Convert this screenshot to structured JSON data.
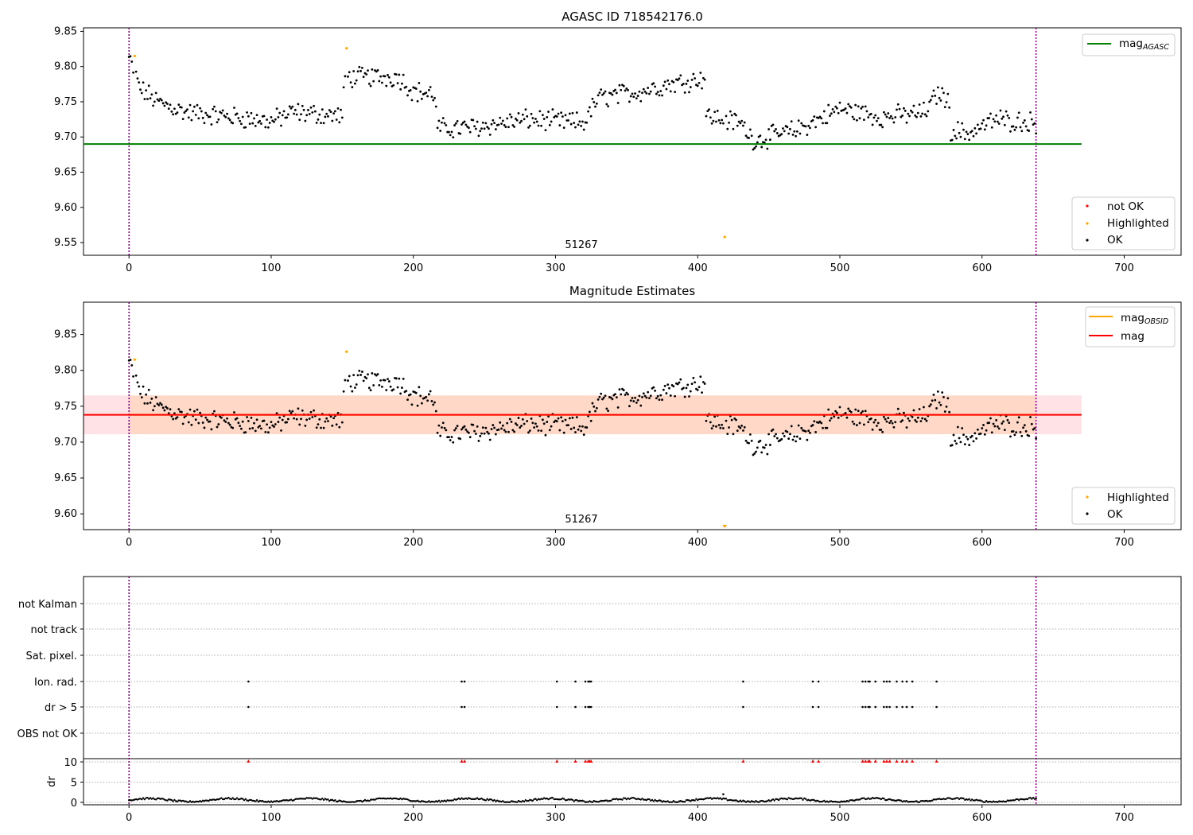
{
  "chart_data": [
    {
      "type": "scatter",
      "title": "AGASC ID 718542176.0",
      "annotation": "51267",
      "xlim": [
        -32,
        740
      ],
      "ylim": [
        9.532,
        9.855
      ],
      "xticks": [
        0,
        100,
        200,
        300,
        400,
        500,
        600,
        700
      ],
      "yticks": [
        9.55,
        9.6,
        9.65,
        9.7,
        9.75,
        9.8,
        9.85
      ],
      "lines": [
        {
          "name": "mag_AGASC",
          "value": 9.69,
          "color": "#008000",
          "x_range": [
            -32,
            670
          ]
        }
      ],
      "vlines": [
        0,
        638
      ],
      "legend_line": {
        "main": "mag",
        "sub": "AGASC"
      },
      "legend_markers": [
        "not OK",
        "Highlighted",
        "OK"
      ],
      "highlighted_points": [
        [
          4,
          9.815
        ],
        [
          153,
          9.826
        ],
        [
          419,
          9.558
        ]
      ]
    },
    {
      "type": "scatter",
      "title": "Magnitude Estimates",
      "annotation": "51267",
      "xlim": [
        -32,
        740
      ],
      "ylim": [
        9.578,
        9.895
      ],
      "xticks": [
        0,
        100,
        200,
        300,
        400,
        500,
        600,
        700
      ],
      "yticks": [
        9.6,
        9.65,
        9.7,
        9.75,
        9.8,
        9.85
      ],
      "lines": [
        {
          "name": "mag_OBSID",
          "value": 9.738,
          "color": "#FFA500",
          "x_range": [
            0,
            638
          ]
        },
        {
          "name": "mag",
          "value": 9.738,
          "color": "#FF0000",
          "x_range": [
            -32,
            670
          ]
        }
      ],
      "band": {
        "low": 9.711,
        "high": 9.765
      },
      "vlines": [
        0,
        638
      ],
      "legend_lines": [
        {
          "main": "mag",
          "sub": "OBSID"
        },
        {
          "main": "mag",
          "sub": ""
        }
      ],
      "legend_markers": [
        "Highlighted",
        "OK"
      ],
      "highlighted_points": [
        [
          4,
          9.815
        ],
        [
          153,
          9.826
        ]
      ],
      "offscale_marker": [
        419,
        9.58
      ]
    },
    {
      "type": "scatter",
      "title": "",
      "xlim": [
        -32,
        740
      ],
      "xticks": [
        0,
        100,
        200,
        300,
        400,
        500,
        600,
        700
      ],
      "categories": [
        "not Kalman",
        "not track",
        "Sat. pixel.",
        "Ion. rad.",
        "dr > 5",
        "OBS not OK"
      ],
      "flag_x": [
        84,
        234,
        236,
        301,
        314,
        321,
        323,
        324,
        325,
        432,
        481,
        485,
        516,
        518,
        520,
        521,
        525,
        531,
        533,
        535,
        540,
        544,
        547,
        551,
        568
      ],
      "dr_ylabel": "dr",
      "dr_ylim": [
        -0.6,
        10.8
      ],
      "dr_yticks": [
        0,
        5,
        10
      ],
      "dr_outliers": [
        [
          418,
          2.0
        ]
      ],
      "vlines": [
        0,
        638
      ]
    }
  ],
  "colors": {
    "ok": "#000000",
    "highlighted": "#FFA500",
    "not_ok": "#FF0000",
    "agasc_line": "#008000",
    "mag_line": "#FF0000",
    "band_fill_in": "#FFD8C8",
    "band_fill_out": "#FFE2E6",
    "vline": "#800080"
  }
}
